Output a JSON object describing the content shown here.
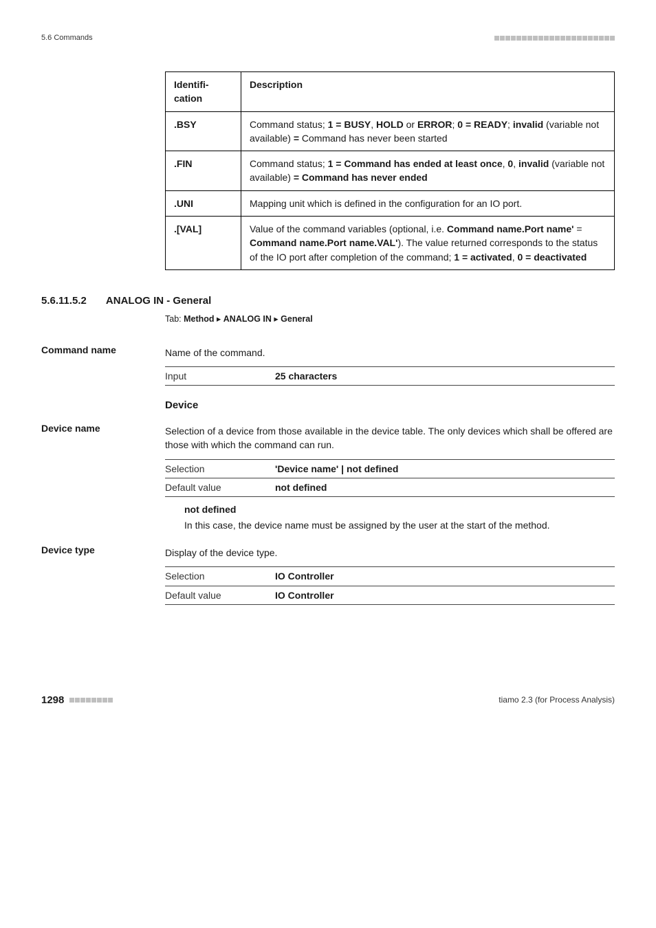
{
  "header": {
    "left": "5.6 Commands"
  },
  "idtable": {
    "head": [
      "Identification",
      "Description"
    ],
    "rows": [
      {
        "id": ".BSY",
        "desc_parts": [
          {
            "t": "Command status; ",
            "b": false
          },
          {
            "t": "1 = BUSY",
            "b": true
          },
          {
            "t": ", ",
            "b": false
          },
          {
            "t": "HOLD",
            "b": true
          },
          {
            "t": " or ",
            "b": false
          },
          {
            "t": "ERROR",
            "b": true
          },
          {
            "t": "; ",
            "b": false
          },
          {
            "t": "0 = READY",
            "b": true
          },
          {
            "t": "; ",
            "b": false
          },
          {
            "t": "invalid",
            "b": true
          },
          {
            "t": " (variable not available) ",
            "b": false
          },
          {
            "t": "=",
            "b": true
          },
          {
            "t": " Command has never been started",
            "b": false
          }
        ]
      },
      {
        "id": ".FIN",
        "desc_parts": [
          {
            "t": "Command status; ",
            "b": false
          },
          {
            "t": "1 = Command has ended at least once",
            "b": true
          },
          {
            "t": ", ",
            "b": false
          },
          {
            "t": "0",
            "b": true
          },
          {
            "t": ", ",
            "b": false
          },
          {
            "t": "invalid",
            "b": true
          },
          {
            "t": " (variable not available) ",
            "b": false
          },
          {
            "t": "= Command has never ended",
            "b": true
          }
        ]
      },
      {
        "id": ".UNI",
        "desc_parts": [
          {
            "t": "Mapping unit which is defined in the configuration for an IO port.",
            "b": false
          }
        ]
      },
      {
        "id": ".[VAL]",
        "desc_parts": [
          {
            "t": "Value of the command variables (optional, i.e. ",
            "b": false
          },
          {
            "t": "Command name.Port name'",
            "b": true
          },
          {
            "t": " = ",
            "b": false
          },
          {
            "t": "Command name.Port name.VAL'",
            "b": true
          },
          {
            "t": "). The value returned corresponds to the status of the IO port after completion of the command; ",
            "b": false
          },
          {
            "t": "1 = activated",
            "b": true
          },
          {
            "t": ", ",
            "b": false
          },
          {
            "t": "0 = deactivated",
            "b": true
          }
        ]
      }
    ]
  },
  "section": {
    "num": "5.6.11.5.2",
    "title": "ANALOG IN - General",
    "tab_prefix": "Tab: ",
    "tab_path": [
      "Method",
      "ANALOG IN",
      "General"
    ]
  },
  "fields": {
    "command_name": {
      "label": "Command name",
      "desc": "Name of the command.",
      "spec": [
        {
          "k": "Input",
          "v": "25 characters"
        }
      ]
    },
    "device_heading": "Device",
    "device_name": {
      "label": "Device name",
      "desc": "Selection of a device from those available in the device table. The only devices which shall be offered are those with which the command can run.",
      "spec": [
        {
          "k": "Selection",
          "v": "'Device name' | not defined"
        },
        {
          "k": "Default value",
          "v": "not defined"
        }
      ],
      "term": "not defined",
      "term_def": "In this case, the device name must be assigned by the user at the start of the method."
    },
    "device_type": {
      "label": "Device type",
      "desc": "Display of the device type.",
      "spec": [
        {
          "k": "Selection",
          "v": "IO Controller"
        },
        {
          "k": "Default value",
          "v": "IO Controller"
        }
      ]
    }
  },
  "footer": {
    "page": "1298",
    "right": "tiamo 2.3 (for Process Analysis)"
  }
}
